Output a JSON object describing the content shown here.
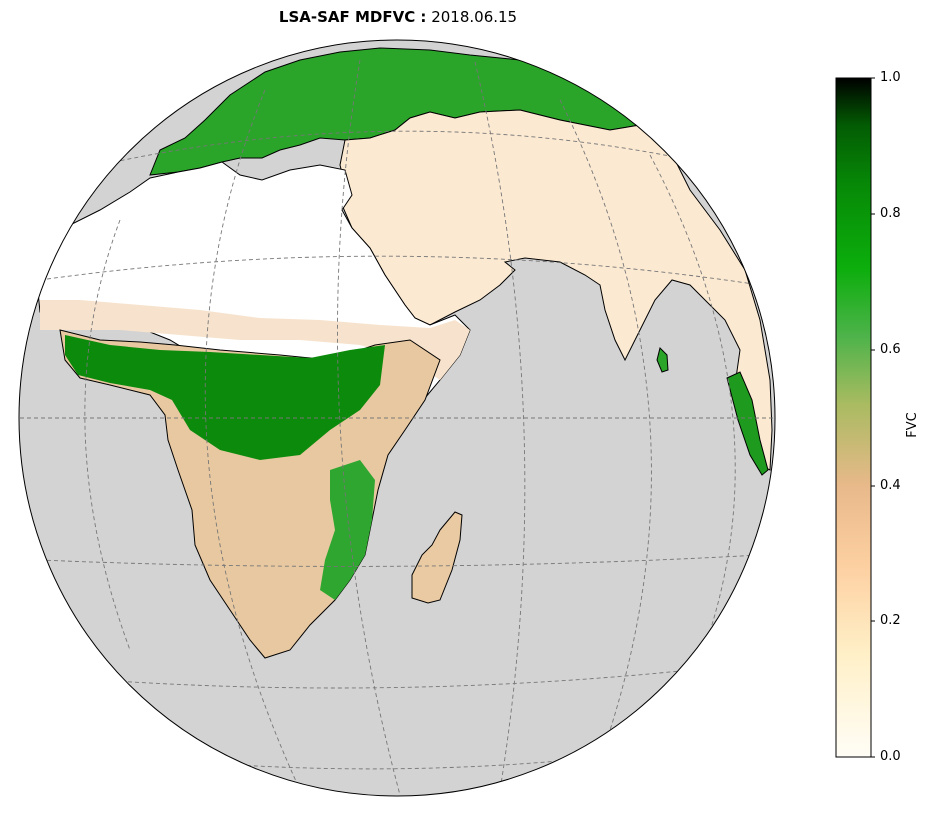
{
  "title": {
    "bold": "LSA-SAF MDFVC :",
    "date": "2018.06.15"
  },
  "colorbar": {
    "label": "FVC",
    "ticks": [
      "0.0",
      "0.2",
      "0.4",
      "0.6",
      "0.8",
      "1.0"
    ],
    "stops": [
      "#fffdf6",
      "#fff0c8",
      "#fdd0a2",
      "#e8b98a",
      "#a9bb61",
      "#4db34a",
      "#0cae0c",
      "#078a07",
      "#035c03",
      "#000000"
    ]
  },
  "colors": {
    "ocean": "#d3d3d3",
    "barren": "#ffffff",
    "sahel": "#f5dcc0",
    "vegetation": "#119f11",
    "dense_forest": "#056105",
    "graticule": "#777777"
  }
}
